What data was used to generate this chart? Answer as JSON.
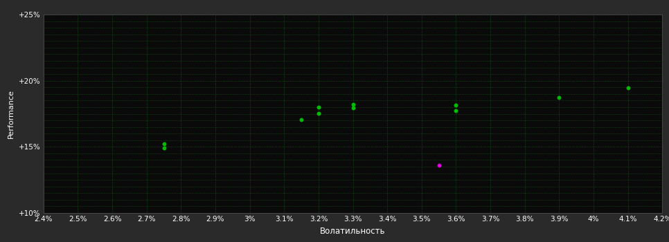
{
  "background_color": "#2a2a2a",
  "plot_bg_color": "#0a0a0a",
  "grid_color": "#1a5a1a",
  "text_color": "#ffffff",
  "xlabel": "Волатильность",
  "ylabel": "Performance",
  "xlim": [
    0.024,
    0.042
  ],
  "ylim": [
    0.1,
    0.25
  ],
  "xticks": [
    0.024,
    0.025,
    0.026,
    0.027,
    0.028,
    0.029,
    0.03,
    0.031,
    0.032,
    0.033,
    0.034,
    0.035,
    0.036,
    0.037,
    0.038,
    0.039,
    0.04,
    0.041,
    0.042
  ],
  "yticks": [
    0.1,
    0.15,
    0.2,
    0.25
  ],
  "ytick_labels": [
    "+10%",
    "+15%",
    "+20%",
    "+25%"
  ],
  "green_points": [
    [
      0.0275,
      0.149
    ],
    [
      0.0275,
      0.1525
    ],
    [
      0.0315,
      0.1705
    ],
    [
      0.032,
      0.18
    ],
    [
      0.032,
      0.1755
    ],
    [
      0.033,
      0.182
    ],
    [
      0.033,
      0.1795
    ],
    [
      0.036,
      0.1815
    ],
    [
      0.036,
      0.1775
    ],
    [
      0.039,
      0.1875
    ],
    [
      0.041,
      0.1945
    ]
  ],
  "magenta_points": [
    [
      0.0355,
      0.136
    ]
  ],
  "point_size": 18,
  "green_color": "#00bb00",
  "magenta_color": "#dd00dd",
  "font_size_ticks": 7.5,
  "font_size_labels": 8.5,
  "font_size_ylabel": 8
}
